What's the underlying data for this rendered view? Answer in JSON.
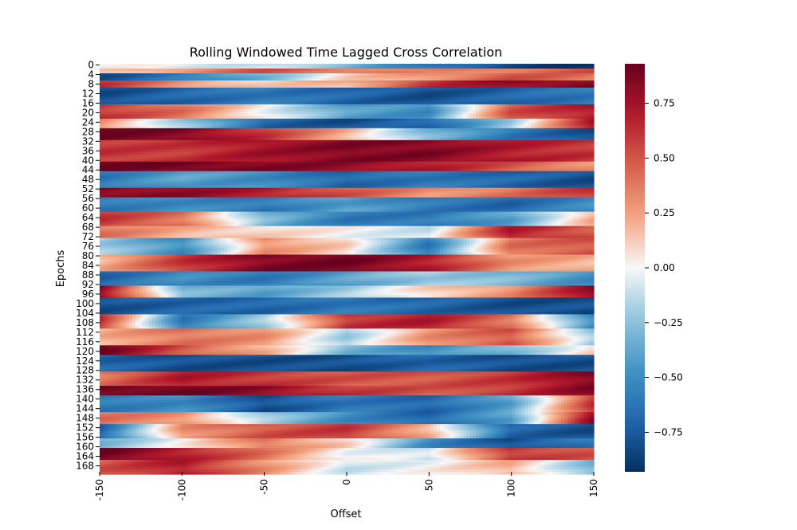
{
  "chart_data": {
    "type": "heatmap",
    "title": "Rolling Windowed Time Lagged Cross Correlation",
    "xlabel": "Offset",
    "ylabel": "Epochs",
    "x_range": [
      -150,
      150
    ],
    "x_ticks": [
      "-150",
      "-100",
      "-50",
      "0",
      "50",
      "100",
      "150"
    ],
    "y_range": [
      0,
      171
    ],
    "y_ticks": [
      "0",
      "4",
      "8",
      "12",
      "16",
      "20",
      "24",
      "28",
      "32",
      "36",
      "40",
      "44",
      "48",
      "52",
      "56",
      "60",
      "64",
      "68",
      "72",
      "76",
      "80",
      "84",
      "88",
      "92",
      "96",
      "100",
      "104",
      "108",
      "112",
      "116",
      "120",
      "124",
      "128",
      "132",
      "136",
      "140",
      "144",
      "148",
      "152",
      "156",
      "160",
      "164",
      "168"
    ],
    "colorbar": {
      "cmap": "RdBu_r",
      "vmin": -0.93,
      "vmax": 0.93,
      "ticks": [
        "0.75",
        "0.50",
        "0.25",
        "0.00",
        "−0.25",
        "−0.50",
        "−0.75"
      ],
      "tick_values": [
        0.75,
        0.5,
        0.25,
        0.0,
        -0.25,
        -0.5,
        -0.75
      ]
    },
    "row_profiles": [
      {
        "epochs": [
          0,
          1
        ],
        "values": [
          0.0,
          -0.05,
          -0.1,
          -0.3,
          -0.6,
          -0.85,
          -0.9
        ]
      },
      {
        "epochs": [
          2,
          3
        ],
        "values": [
          0.1,
          0.3,
          0.5,
          0.4,
          0.3,
          0.4,
          0.5
        ]
      },
      {
        "epochs": [
          4,
          6
        ],
        "values": [
          -0.8,
          -0.6,
          -0.3,
          0.1,
          0.3,
          0.5,
          0.4
        ]
      },
      {
        "epochs": [
          7,
          9
        ],
        "values": [
          0.6,
          0.3,
          0.1,
          0.2,
          0.6,
          0.8,
          0.85
        ]
      },
      {
        "epochs": [
          10,
          16
        ],
        "values": [
          -0.8,
          -0.7,
          -0.6,
          -0.7,
          -0.8,
          -0.7,
          -0.6
        ]
      },
      {
        "epochs": [
          17,
          22
        ],
        "values": [
          0.6,
          0.4,
          0.0,
          -0.4,
          -0.5,
          0.5,
          0.7
        ]
      },
      {
        "epochs": [
          23,
          26
        ],
        "values": [
          0.3,
          -0.2,
          -0.7,
          -0.8,
          -0.7,
          -0.2,
          0.7
        ]
      },
      {
        "epochs": [
          27,
          31
        ],
        "values": [
          0.9,
          0.85,
          0.6,
          0.2,
          -0.3,
          -0.6,
          -0.8
        ]
      },
      {
        "epochs": [
          32,
          40
        ],
        "values": [
          0.6,
          0.6,
          0.75,
          0.85,
          0.85,
          0.7,
          0.6
        ]
      },
      {
        "epochs": [
          41,
          44
        ],
        "values": [
          0.9,
          0.9,
          0.85,
          0.8,
          0.7,
          0.5,
          0.3
        ]
      },
      {
        "epochs": [
          45,
          51
        ],
        "values": [
          -0.6,
          -0.4,
          -0.5,
          -0.7,
          -0.6,
          -0.7,
          -0.8
        ]
      },
      {
        "epochs": [
          52,
          55
        ],
        "values": [
          0.85,
          0.8,
          0.7,
          0.5,
          0.3,
          0.4,
          0.6
        ]
      },
      {
        "epochs": [
          56,
          61
        ],
        "values": [
          -0.6,
          -0.5,
          -0.6,
          -0.4,
          -0.6,
          -0.7,
          -0.5
        ]
      },
      {
        "epochs": [
          62,
          67
        ],
        "values": [
          0.6,
          0.4,
          -0.3,
          -0.6,
          -0.6,
          -0.4,
          0.2
        ]
      },
      {
        "epochs": [
          68,
          72
        ],
        "values": [
          0.4,
          0.2,
          0.1,
          0.0,
          -0.1,
          0.7,
          0.5
        ]
      },
      {
        "epochs": [
          73,
          79
        ],
        "values": [
          -0.2,
          -0.5,
          0.3,
          0.1,
          -0.6,
          0.4,
          0.5
        ]
      },
      {
        "epochs": [
          80,
          86
        ],
        "values": [
          0.2,
          0.6,
          0.85,
          0.9,
          0.7,
          0.3,
          0.2
        ]
      },
      {
        "epochs": [
          87,
          92
        ],
        "values": [
          -0.7,
          -0.5,
          -0.6,
          -0.4,
          -0.2,
          -0.3,
          -0.5
        ]
      },
      {
        "epochs": [
          93,
          97
        ],
        "values": [
          0.8,
          -0.3,
          -0.4,
          -0.2,
          0.1,
          0.3,
          0.8
        ]
      },
      {
        "epochs": [
          98,
          104
        ],
        "values": [
          -0.8,
          -0.7,
          -0.7,
          -0.6,
          -0.7,
          -0.8,
          -0.8
        ]
      },
      {
        "epochs": [
          105,
          110
        ],
        "values": [
          0.6,
          -0.6,
          -0.2,
          0.6,
          0.7,
          0.4,
          -0.5
        ]
      },
      {
        "epochs": [
          111,
          117
        ],
        "values": [
          0.2,
          0.4,
          0.3,
          -0.2,
          0.3,
          0.5,
          -0.2
        ]
      },
      {
        "epochs": [
          118,
          121
        ],
        "values": [
          0.9,
          0.5,
          0.2,
          -0.3,
          -0.5,
          -0.3,
          0.1
        ]
      },
      {
        "epochs": [
          122,
          128
        ],
        "values": [
          -0.7,
          -0.8,
          -0.8,
          -0.8,
          -0.7,
          -0.8,
          -0.8
        ]
      },
      {
        "epochs": [
          129,
          134
        ],
        "values": [
          0.4,
          0.7,
          0.6,
          0.5,
          0.5,
          0.6,
          0.85
        ]
      },
      {
        "epochs": [
          135,
          138
        ],
        "values": [
          0.9,
          0.9,
          0.8,
          0.6,
          0.5,
          0.6,
          0.85
        ]
      },
      {
        "epochs": [
          139,
          145
        ],
        "values": [
          -0.6,
          -0.5,
          -0.8,
          -0.6,
          -0.7,
          -0.4,
          0.6
        ]
      },
      {
        "epochs": [
          146,
          150
        ],
        "values": [
          0.4,
          0.3,
          -0.2,
          -0.5,
          -0.7,
          -0.4,
          0.8
        ]
      },
      {
        "epochs": [
          151,
          156
        ],
        "values": [
          -0.7,
          0.3,
          0.5,
          0.6,
          0.2,
          -0.7,
          -0.8
        ]
      },
      {
        "epochs": [
          157,
          160
        ],
        "values": [
          -0.3,
          0.0,
          0.4,
          0.1,
          -0.5,
          -0.8,
          -0.6
        ]
      },
      {
        "epochs": [
          161,
          165
        ],
        "values": [
          0.9,
          0.7,
          0.4,
          0.0,
          -0.1,
          0.6,
          0.5
        ]
      },
      {
        "epochs": [
          166,
          171
        ],
        "values": [
          0.5,
          0.7,
          0.3,
          -0.1,
          0.0,
          0.2,
          -0.3
        ]
      }
    ]
  }
}
